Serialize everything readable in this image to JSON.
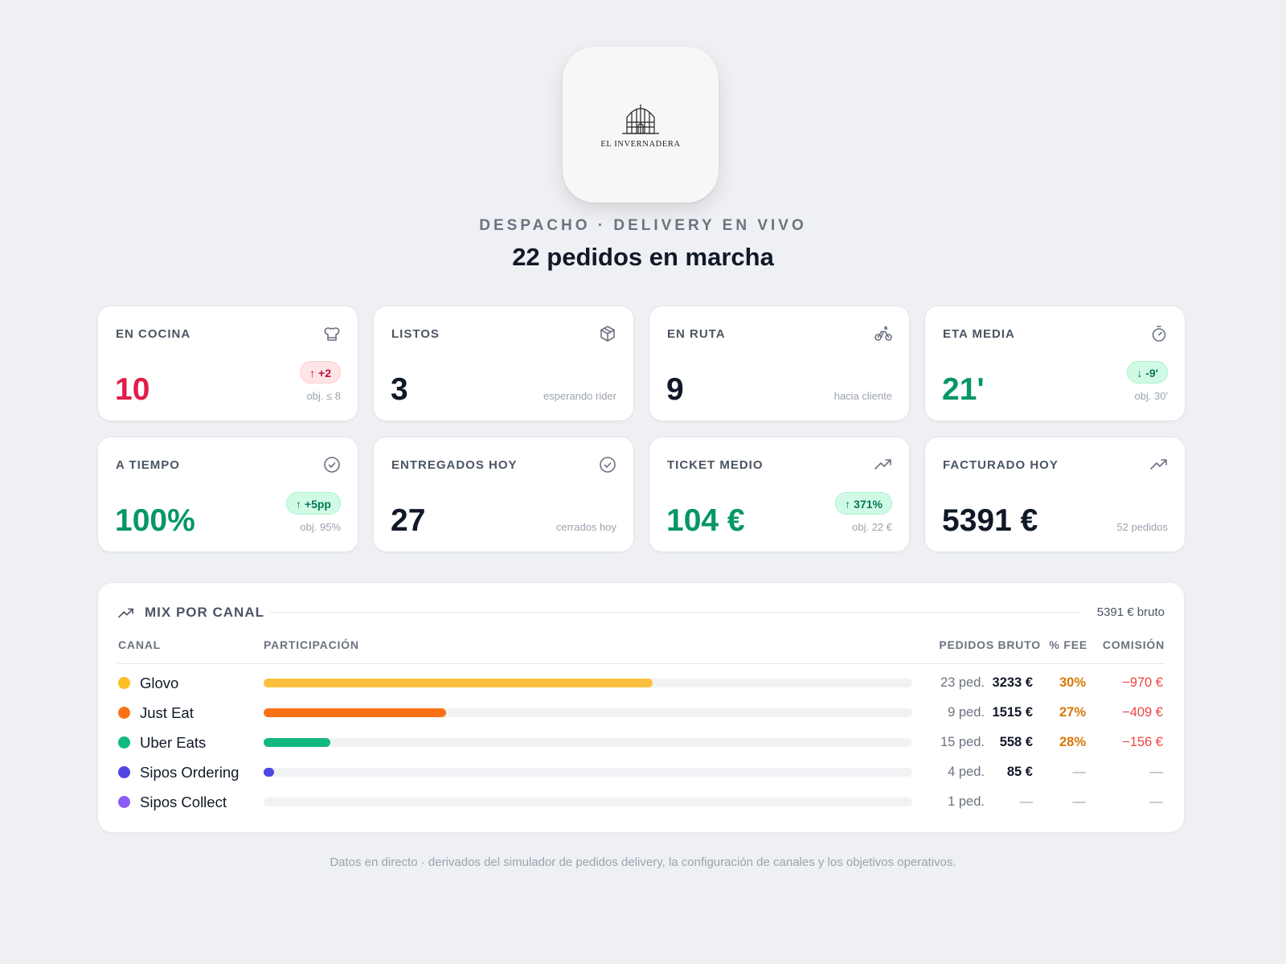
{
  "brand": {
    "name": "EL INVERNADERA",
    "logo_icon": "greenhouse-logo-icon"
  },
  "header": {
    "kicker": "DESPACHO · DELIVERY EN VIVO",
    "title": "22 pedidos en marcha"
  },
  "kpis": [
    {
      "label": "EN COCINA",
      "icon": "chef-hat-icon",
      "value": "10",
      "badge": "↑ +2",
      "note": "obj. ≤ 8"
    },
    {
      "label": "LISTOS",
      "icon": "package-icon",
      "value": "3",
      "note": "esperando rider"
    },
    {
      "label": "EN RUTA",
      "icon": "bike-icon",
      "value": "9",
      "note": "hacia cliente"
    },
    {
      "label": "ETA MEDIA",
      "icon": "timer-icon",
      "value": "21'",
      "badge": "↓ -9'",
      "note": "obj. 30'"
    },
    {
      "label": "A TIEMPO",
      "icon": "check-circle-icon",
      "value": "100%",
      "badge": "↑ +5pp",
      "note": "obj. 95%"
    },
    {
      "label": "ENTREGADOS HOY",
      "icon": "check-circle-icon",
      "value": "27",
      "note": "cerrados hoy"
    },
    {
      "label": "TICKET MEDIO",
      "icon": "trending-up-icon",
      "value": "104 €",
      "badge": "↑ 371%",
      "note": "obj. 22 €"
    },
    {
      "label": "FACTURADO HOY",
      "icon": "trending-up-icon",
      "value": "5391 €",
      "note": "52 pedidos"
    }
  ],
  "colors": {
    "red": "#e11d48",
    "green": "#059669",
    "dark": "#111827"
  },
  "mix": {
    "title": "MIX POR CANAL",
    "total": "5391 € bruto",
    "headers": {
      "channel": "CANAL",
      "share": "PARTICIPACIÓN",
      "orders": "PEDIDOS",
      "gross": "BRUTO",
      "fee": "% FEE",
      "commission": "COMISIÓN"
    },
    "rows": [
      {
        "name": "Glovo",
        "color": "#fbbf24",
        "bar_color": "#fbbf40",
        "share": 0.6,
        "orders": "23 ped.",
        "gross": "3233 €",
        "fee": "30%",
        "commission": "−970 €"
      },
      {
        "name": "Just Eat",
        "color": "#f97316",
        "bar_color": "#f97316",
        "share": 0.281,
        "orders": "9 ped.",
        "gross": "1515 €",
        "fee": "27%",
        "commission": "−409 €"
      },
      {
        "name": "Uber Eats",
        "color": "#10b981",
        "bar_color": "#10b981",
        "share": 0.103,
        "orders": "15 ped.",
        "gross": "558 €",
        "fee": "28%",
        "commission": "−156 €"
      },
      {
        "name": "Sipos Ordering",
        "color": "#4f46e5",
        "bar_color": "#4f46e5",
        "share": 0.016,
        "orders": "4 ped.",
        "gross": "85 €",
        "fee": "—",
        "commission": "—"
      },
      {
        "name": "Sipos Collect",
        "color": "#8b5cf6",
        "bar_color": "#8b5cf6",
        "share": 0.0,
        "orders": "1 ped.",
        "gross": "—",
        "fee": "—",
        "commission": "—"
      }
    ]
  },
  "footer": "Datos en directo · derivados del simulador de pedidos delivery, la configuración de canales y los objetivos operativos."
}
